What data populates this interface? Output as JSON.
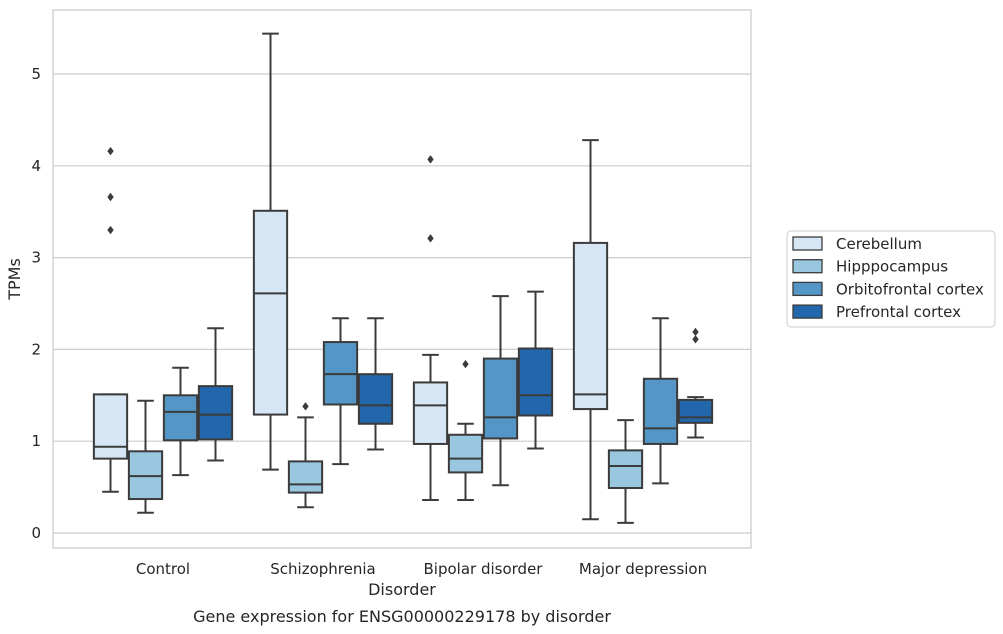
{
  "chart_data": {
    "type": "box",
    "xlabel": "Disorder",
    "ylabel": "TPMs",
    "caption": "Gene expression for ENSG00000229178 by disorder",
    "ylim": [
      -0.15,
      5.75
    ],
    "yticks": [
      0,
      1,
      2,
      3,
      4,
      5
    ],
    "grid": "horizontal",
    "legend_position": "right",
    "categories": [
      "Control",
      "Schizophrenia",
      "Bipolar disorder",
      "Major depression"
    ],
    "series": [
      {
        "name": "Cerebellum",
        "color": "#d6e6f4",
        "boxes": [
          {
            "whislo": 0.45,
            "q1": 0.81,
            "med": 0.94,
            "q3": 1.51,
            "whishi": 1.51,
            "fliers": [
              3.3,
              3.66,
              4.16
            ]
          },
          {
            "whislo": 0.69,
            "q1": 1.29,
            "med": 2.61,
            "q3": 3.51,
            "whishi": 5.44,
            "fliers": []
          },
          {
            "whislo": 0.36,
            "q1": 0.97,
            "med": 1.39,
            "q3": 1.64,
            "whishi": 1.94,
            "fliers": [
              3.21,
              4.07
            ]
          },
          {
            "whislo": 0.15,
            "q1": 1.35,
            "med": 1.51,
            "q3": 3.16,
            "whishi": 4.28,
            "fliers": []
          }
        ]
      },
      {
        "name": "Hipppocampus",
        "color": "#9ac7e0",
        "boxes": [
          {
            "whislo": 0.22,
            "q1": 0.37,
            "med": 0.62,
            "q3": 0.89,
            "whishi": 1.44,
            "fliers": []
          },
          {
            "whislo": 0.28,
            "q1": 0.44,
            "med": 0.53,
            "q3": 0.78,
            "whishi": 1.26,
            "fliers": [
              1.38
            ]
          },
          {
            "whislo": 0.36,
            "q1": 0.66,
            "med": 0.81,
            "q3": 1.07,
            "whishi": 1.19,
            "fliers": [
              1.84
            ]
          },
          {
            "whislo": 0.11,
            "q1": 0.49,
            "med": 0.73,
            "q3": 0.9,
            "whishi": 1.23,
            "fliers": []
          }
        ]
      },
      {
        "name": "Orbitofrontal cortex",
        "color": "#5497c6",
        "boxes": [
          {
            "whislo": 0.63,
            "q1": 1.01,
            "med": 1.32,
            "q3": 1.5,
            "whishi": 1.8,
            "fliers": []
          },
          {
            "whislo": 0.75,
            "q1": 1.4,
            "med": 1.73,
            "q3": 2.08,
            "whishi": 2.34,
            "fliers": []
          },
          {
            "whislo": 0.52,
            "q1": 1.03,
            "med": 1.26,
            "q3": 1.9,
            "whishi": 2.58,
            "fliers": []
          },
          {
            "whislo": 0.54,
            "q1": 0.97,
            "med": 1.14,
            "q3": 1.68,
            "whishi": 2.34,
            "fliers": []
          }
        ]
      },
      {
        "name": "Prefrontal cortex",
        "color": "#2266ab",
        "boxes": [
          {
            "whislo": 0.79,
            "q1": 1.02,
            "med": 1.29,
            "q3": 1.6,
            "whishi": 2.23,
            "fliers": []
          },
          {
            "whislo": 0.91,
            "q1": 1.19,
            "med": 1.39,
            "q3": 1.73,
            "whishi": 2.34,
            "fliers": []
          },
          {
            "whislo": 0.92,
            "q1": 1.28,
            "med": 1.5,
            "q3": 2.01,
            "whishi": 2.63,
            "fliers": []
          },
          {
            "whislo": 1.04,
            "q1": 1.2,
            "med": 1.26,
            "q3": 1.45,
            "whishi": 1.48,
            "fliers": [
              2.11,
              2.19
            ]
          }
        ]
      }
    ]
  }
}
